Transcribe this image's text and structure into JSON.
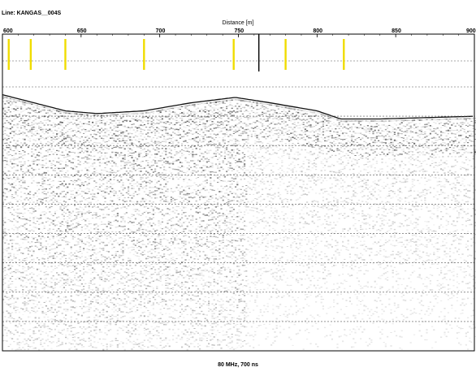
{
  "line_label": "Line: KANGAS__004S",
  "footer_label": "80 MHz, 700 ns",
  "colors": {
    "marker": "#f0dc00",
    "cursor": "#000000",
    "grid": "#555555"
  },
  "chart_data": {
    "type": "radargram",
    "xlabel": "Distance [m]",
    "xlim": [
      600,
      900
    ],
    "x_ticks": [
      600,
      650,
      700,
      750,
      800,
      850,
      900
    ],
    "markers": [
      604,
      618,
      640,
      690,
      747,
      780,
      817
    ],
    "cursor": 763,
    "surface_profile": [
      {
        "x": 600,
        "depth": 0.05
      },
      {
        "x": 620,
        "depth": 0.08
      },
      {
        "x": 640,
        "depth": 0.11
      },
      {
        "x": 660,
        "depth": 0.12
      },
      {
        "x": 690,
        "depth": 0.11
      },
      {
        "x": 720,
        "depth": 0.08
      },
      {
        "x": 748,
        "depth": 0.06
      },
      {
        "x": 770,
        "depth": 0.08
      },
      {
        "x": 800,
        "depth": 0.11
      },
      {
        "x": 815,
        "depth": 0.14
      },
      {
        "x": 840,
        "depth": 0.14
      },
      {
        "x": 870,
        "depth": 0.135
      },
      {
        "x": 900,
        "depth": 0.13
      }
    ],
    "depth_gridlines": 9
  }
}
